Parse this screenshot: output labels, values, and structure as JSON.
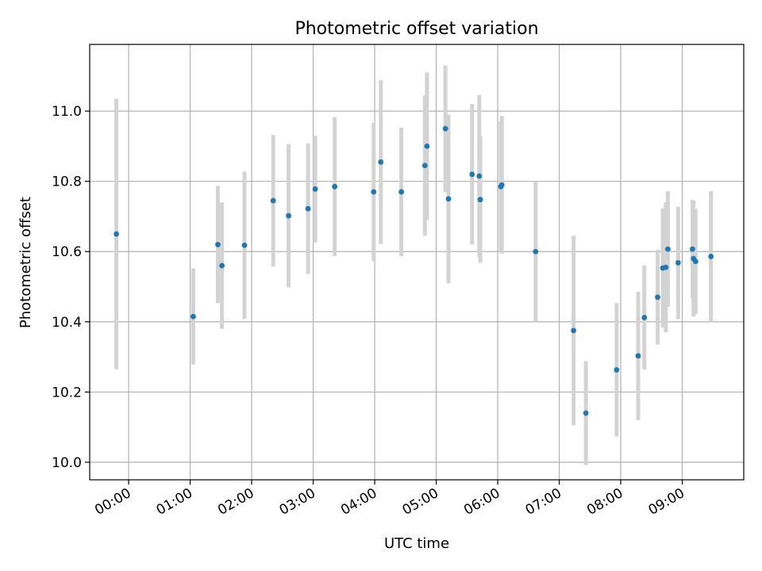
{
  "chart_data": {
    "type": "scatter",
    "title": "Photometric offset variation",
    "xlabel": "UTC time",
    "ylabel": "Photometric offset",
    "grid": true,
    "x_unit": "hours UTC",
    "xlim": [
      "23:22",
      "10:00"
    ],
    "ylim": [
      9.95,
      11.19
    ],
    "xticks": [
      "00:00",
      "01:00",
      "02:00",
      "03:00",
      "04:00",
      "05:00",
      "06:00",
      "07:00",
      "08:00",
      "09:00"
    ],
    "yticks": [
      "10.0",
      "10.2",
      "10.4",
      "10.6",
      "10.8",
      "11.0"
    ],
    "colors": {
      "point": "#1f77b4",
      "errorbar": "#d3d3d3",
      "grid": "#b0b0b0"
    },
    "series": [
      {
        "points": [
          {
            "x": "23:48",
            "y": 10.65,
            "err": 0.385
          },
          {
            "x": "01:03",
            "y": 10.415,
            "err": 0.137
          },
          {
            "x": "01:27",
            "y": 10.62,
            "err": 0.167
          },
          {
            "x": "01:31",
            "y": 10.56,
            "err": 0.18
          },
          {
            "x": "01:53",
            "y": 10.618,
            "err": 0.21
          },
          {
            "x": "02:21",
            "y": 10.745,
            "err": 0.187
          },
          {
            "x": "02:36",
            "y": 10.702,
            "err": 0.204
          },
          {
            "x": "02:55",
            "y": 10.722,
            "err": 0.186
          },
          {
            "x": "03:02",
            "y": 10.778,
            "err": 0.152
          },
          {
            "x": "03:21",
            "y": 10.785,
            "err": 0.198
          },
          {
            "x": "03:59",
            "y": 10.77,
            "err": 0.197
          },
          {
            "x": "04:06",
            "y": 10.855,
            "err": 0.233
          },
          {
            "x": "04:26",
            "y": 10.77,
            "err": 0.183
          },
          {
            "x": "04:49",
            "y": 10.845,
            "err": 0.2
          },
          {
            "x": "04:51",
            "y": 10.9,
            "err": 0.21
          },
          {
            "x": "05:09",
            "y": 10.95,
            "err": 0.18
          },
          {
            "x": "05:12",
            "y": 10.75,
            "err": 0.24
          },
          {
            "x": "05:35",
            "y": 10.82,
            "err": 0.2
          },
          {
            "x": "05:42",
            "y": 10.815,
            "err": 0.231
          },
          {
            "x": "05:43",
            "y": 10.748,
            "err": 0.18
          },
          {
            "x": "06:03",
            "y": 10.785,
            "err": 0.185
          },
          {
            "x": "06:04",
            "y": 10.79,
            "err": 0.196
          },
          {
            "x": "06:37",
            "y": 10.6,
            "err": 0.2
          },
          {
            "x": "07:14",
            "y": 10.375,
            "err": 0.27
          },
          {
            "x": "07:26",
            "y": 10.14,
            "err": 0.148
          },
          {
            "x": "07:56",
            "y": 10.263,
            "err": 0.19
          },
          {
            "x": "08:17",
            "y": 10.303,
            "err": 0.183
          },
          {
            "x": "08:23",
            "y": 10.412,
            "err": 0.148
          },
          {
            "x": "08:36",
            "y": 10.47,
            "err": 0.135
          },
          {
            "x": "08:41",
            "y": 10.553,
            "err": 0.17
          },
          {
            "x": "08:44",
            "y": 10.555,
            "err": 0.185
          },
          {
            "x": "08:46",
            "y": 10.607,
            "err": 0.165
          },
          {
            "x": "08:56",
            "y": 10.568,
            "err": 0.16
          },
          {
            "x": "09:10",
            "y": 10.607,
            "err": 0.14
          },
          {
            "x": "09:11",
            "y": 10.58,
            "err": 0.165
          },
          {
            "x": "09:13",
            "y": 10.572,
            "err": 0.15
          },
          {
            "x": "09:28",
            "y": 10.586,
            "err": 0.186
          }
        ]
      }
    ]
  }
}
